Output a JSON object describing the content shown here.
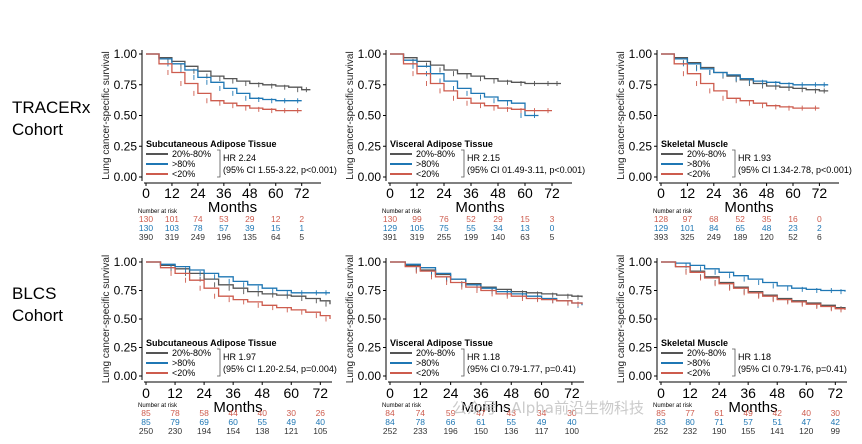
{
  "row_labels": [
    {
      "line1": "TRACERx",
      "line2": "Cohort"
    },
    {
      "line1": "BLCS",
      "line2": "Cohort"
    }
  ],
  "colors": {
    "mid": "#555555",
    "high": "#1f77b4",
    "low": "#cd5c4e"
  },
  "watermark": "公众号 · Alpha前沿生物科技",
  "chart_data": [
    {
      "type": "line",
      "panel": "tracerx-subcutaneous",
      "ylabel": "Lung cancer-specific survival",
      "xlabel": "Months",
      "xticks": [
        0,
        12,
        24,
        36,
        48,
        60,
        72
      ],
      "yticks": [
        "0.00",
        "0.25",
        "0.50",
        "0.75",
        "1.00"
      ],
      "xlim": [
        0,
        80
      ],
      "ylim": [
        0,
        1
      ],
      "legend_title": "Subcutaneous Adipose Tissue",
      "hr_line1": "HR 2.24",
      "hr_line2": "(95% CI 1.55-3.22, p<0.001)",
      "risk_header": "Number at risk",
      "series": [
        {
          "name": "20%-80%",
          "key": "mid",
          "x": [
            0,
            6,
            12,
            18,
            24,
            30,
            36,
            42,
            48,
            54,
            60,
            66,
            72,
            76
          ],
          "y": [
            1,
            0.97,
            0.94,
            0.9,
            0.86,
            0.82,
            0.8,
            0.78,
            0.76,
            0.75,
            0.74,
            0.73,
            0.71,
            0.71
          ],
          "risk": [
            "390",
            "319",
            "249",
            "196",
            "135",
            "64",
            "5"
          ]
        },
        {
          "name": ">80%",
          "key": "high",
          "x": [
            0,
            6,
            12,
            18,
            24,
            30,
            36,
            42,
            48,
            54,
            60,
            66,
            72
          ],
          "y": [
            1,
            0.96,
            0.92,
            0.87,
            0.81,
            0.77,
            0.72,
            0.68,
            0.64,
            0.63,
            0.62,
            0.62,
            0.62
          ],
          "risk": [
            "130",
            "103",
            "78",
            "57",
            "39",
            "15",
            "1"
          ]
        },
        {
          "name": "<20%",
          "key": "low",
          "x": [
            0,
            6,
            12,
            18,
            24,
            30,
            36,
            42,
            48,
            54,
            60,
            66,
            72
          ],
          "y": [
            1,
            0.92,
            0.85,
            0.76,
            0.68,
            0.62,
            0.6,
            0.58,
            0.56,
            0.55,
            0.54,
            0.54,
            0.54
          ],
          "risk": [
            "130",
            "101",
            "74",
            "53",
            "29",
            "12",
            "2"
          ]
        }
      ]
    },
    {
      "type": "line",
      "panel": "tracerx-visceral",
      "ylabel": "Lung cancer-specific survival",
      "xlabel": "Months",
      "xticks": [
        0,
        12,
        24,
        36,
        48,
        60,
        72
      ],
      "yticks": [
        "0.00",
        "0.25",
        "0.50",
        "0.75",
        "1.00"
      ],
      "xlim": [
        0,
        80
      ],
      "ylim": [
        0,
        1
      ],
      "legend_title": "Visceral Adipose Tissue",
      "hr_line1": "HR 2.15",
      "hr_line2": "(95% CI 01.49-3.11, p<0.001)",
      "risk_header": "Number at risk",
      "series": [
        {
          "name": "20%-80%",
          "key": "mid",
          "x": [
            0,
            6,
            12,
            18,
            24,
            30,
            36,
            42,
            48,
            54,
            60,
            66,
            72,
            76
          ],
          "y": [
            1,
            0.97,
            0.94,
            0.91,
            0.87,
            0.84,
            0.82,
            0.8,
            0.78,
            0.77,
            0.76,
            0.76,
            0.76,
            0.76
          ],
          "risk": [
            "391",
            "319",
            "255",
            "199",
            "140",
            "63",
            "5"
          ]
        },
        {
          "name": ">80%",
          "key": "high",
          "x": [
            0,
            6,
            12,
            18,
            24,
            30,
            36,
            42,
            48,
            54,
            60,
            66
          ],
          "y": [
            1,
            0.95,
            0.9,
            0.84,
            0.78,
            0.72,
            0.68,
            0.65,
            0.62,
            0.6,
            0.5,
            0.5
          ],
          "risk": [
            "129",
            "105",
            "75",
            "55",
            "34",
            "13",
            "0"
          ]
        },
        {
          "name": "<20%",
          "key": "low",
          "x": [
            0,
            6,
            12,
            18,
            24,
            30,
            36,
            42,
            48,
            54,
            60,
            66,
            72
          ],
          "y": [
            1,
            0.92,
            0.84,
            0.76,
            0.7,
            0.64,
            0.6,
            0.58,
            0.56,
            0.55,
            0.54,
            0.54,
            0.54
          ],
          "risk": [
            "130",
            "99",
            "76",
            "52",
            "29",
            "15",
            "3"
          ]
        }
      ]
    },
    {
      "type": "line",
      "panel": "tracerx-skeletal",
      "ylabel": "Lung cancer-specific survival",
      "xlabel": "Months",
      "xticks": [
        0,
        12,
        24,
        36,
        48,
        60,
        72
      ],
      "yticks": [
        "0.00",
        "0.25",
        "0.50",
        "0.75",
        "1.00"
      ],
      "xlim": [
        0,
        80
      ],
      "ylim": [
        0,
        1
      ],
      "legend_title": "Skeletal Muscle",
      "hr_line1": "HR 1.93",
      "hr_line2": "(95% CI 1.34-2.78, p<0.001)",
      "risk_header": "Number at risk",
      "series": [
        {
          "name": "20%-80%",
          "key": "mid",
          "x": [
            0,
            6,
            12,
            18,
            24,
            30,
            36,
            42,
            48,
            54,
            60,
            66,
            72,
            76
          ],
          "y": [
            1,
            0.97,
            0.93,
            0.89,
            0.85,
            0.82,
            0.79,
            0.76,
            0.74,
            0.73,
            0.72,
            0.71,
            0.7,
            0.7
          ],
          "risk": [
            "393",
            "325",
            "249",
            "189",
            "120",
            "52",
            "6"
          ]
        },
        {
          "name": ">80%",
          "key": "high",
          "x": [
            0,
            6,
            12,
            18,
            24,
            30,
            36,
            42,
            48,
            54,
            60,
            66,
            72,
            76
          ],
          "y": [
            1,
            0.96,
            0.92,
            0.88,
            0.85,
            0.83,
            0.8,
            0.78,
            0.77,
            0.76,
            0.75,
            0.75,
            0.75,
            0.75
          ],
          "risk": [
            "129",
            "101",
            "84",
            "65",
            "48",
            "23",
            "2"
          ]
        },
        {
          "name": "<20%",
          "key": "low",
          "x": [
            0,
            6,
            12,
            18,
            24,
            30,
            36,
            42,
            48,
            54,
            60,
            66,
            72
          ],
          "y": [
            1,
            0.92,
            0.84,
            0.76,
            0.7,
            0.64,
            0.62,
            0.6,
            0.58,
            0.57,
            0.56,
            0.56,
            0.56
          ],
          "risk": [
            "128",
            "97",
            "68",
            "52",
            "35",
            "16",
            "0"
          ]
        }
      ]
    },
    {
      "type": "line",
      "panel": "blcs-subcutaneous",
      "ylabel": "Lung cancer-specific survival",
      "xlabel": "Months",
      "xticks": [
        0,
        12,
        24,
        36,
        48,
        60,
        72
      ],
      "yticks": [
        "0.00",
        "0.25",
        "0.50",
        "0.75",
        "1.00"
      ],
      "xlim": [
        0,
        76
      ],
      "ylim": [
        0,
        1
      ],
      "legend_title": "Subcutaneous Adipose Tissue",
      "hr_line1": "HR 1.97",
      "hr_line2": "(95% CI 1.20-2.54, p=0.004)",
      "risk_header": "Number at risk",
      "series": [
        {
          "name": "20%-80%",
          "key": "mid",
          "x": [
            0,
            6,
            12,
            18,
            24,
            30,
            36,
            42,
            48,
            54,
            60,
            66,
            72,
            76
          ],
          "y": [
            1,
            0.97,
            0.94,
            0.9,
            0.85,
            0.8,
            0.77,
            0.74,
            0.72,
            0.71,
            0.7,
            0.68,
            0.66,
            0.63
          ],
          "risk": [
            "250",
            "230",
            "194",
            "154",
            "138",
            "121",
            "105"
          ]
        },
        {
          "name": ">80%",
          "key": "high",
          "x": [
            0,
            6,
            12,
            18,
            24,
            30,
            36,
            42,
            48,
            54,
            60,
            66,
            72,
            76
          ],
          "y": [
            1,
            0.98,
            0.96,
            0.93,
            0.9,
            0.87,
            0.83,
            0.8,
            0.77,
            0.75,
            0.73,
            0.73,
            0.73,
            0.73
          ],
          "risk": [
            "85",
            "79",
            "69",
            "60",
            "55",
            "49",
            "40"
          ]
        },
        {
          "name": "<20%",
          "key": "low",
          "x": [
            0,
            6,
            12,
            18,
            24,
            30,
            36,
            42,
            48,
            54,
            60,
            66,
            72,
            76
          ],
          "y": [
            1,
            0.95,
            0.9,
            0.84,
            0.77,
            0.7,
            0.67,
            0.65,
            0.62,
            0.6,
            0.58,
            0.56,
            0.53,
            0.5
          ],
          "risk": [
            "85",
            "78",
            "58",
            "44",
            "40",
            "30",
            "26"
          ]
        }
      ]
    },
    {
      "type": "line",
      "panel": "blcs-visceral",
      "ylabel": "Lung cancer-specific survival",
      "xlabel": "Months",
      "xticks": [
        0,
        12,
        24,
        36,
        48,
        60,
        72
      ],
      "yticks": [
        "0.00",
        "0.25",
        "0.50",
        "0.75",
        "1.00"
      ],
      "xlim": [
        0,
        76
      ],
      "ylim": [
        0,
        1
      ],
      "legend_title": "Visceral Adipose Tissue",
      "hr_line1": "HR 1.18",
      "hr_line2": "(95% CI 0.79-1.77, p=0.41)",
      "risk_header": "Number at risk",
      "series": [
        {
          "name": "20%-80%",
          "key": "mid",
          "x": [
            0,
            6,
            12,
            18,
            24,
            30,
            36,
            42,
            48,
            54,
            60,
            66,
            72,
            76
          ],
          "y": [
            1,
            0.97,
            0.93,
            0.89,
            0.85,
            0.81,
            0.78,
            0.76,
            0.74,
            0.73,
            0.72,
            0.71,
            0.7,
            0.69
          ],
          "risk": [
            "252",
            "233",
            "196",
            "150",
            "136",
            "117",
            "100"
          ]
        },
        {
          "name": ">80%",
          "key": "high",
          "x": [
            0,
            6,
            12,
            18,
            24,
            30,
            36,
            42,
            48,
            54,
            60,
            66,
            72,
            76
          ],
          "y": [
            1,
            0.98,
            0.95,
            0.9,
            0.85,
            0.8,
            0.77,
            0.74,
            0.72,
            0.7,
            0.68,
            0.66,
            0.64,
            0.62
          ],
          "risk": [
            "84",
            "78",
            "66",
            "61",
            "55",
            "49",
            "40"
          ]
        },
        {
          "name": "<20%",
          "key": "low",
          "x": [
            0,
            6,
            12,
            18,
            24,
            30,
            36,
            42,
            48,
            54,
            60,
            66,
            72,
            76
          ],
          "y": [
            1,
            0.96,
            0.92,
            0.87,
            0.82,
            0.78,
            0.75,
            0.72,
            0.7,
            0.68,
            0.67,
            0.66,
            0.64,
            0.63
          ],
          "risk": [
            "84",
            "74",
            "59",
            "47",
            "43",
            "34",
            "30"
          ]
        }
      ]
    },
    {
      "type": "line",
      "panel": "blcs-skeletal",
      "ylabel": "Lung cancer-specific survival",
      "xlabel": "Months",
      "xticks": [
        0,
        12,
        24,
        36,
        48,
        60,
        72
      ],
      "yticks": [
        "0.00",
        "0.25",
        "0.50",
        "0.75",
        "1.00"
      ],
      "xlim": [
        0,
        76
      ],
      "ylim": [
        0,
        1
      ],
      "legend_title": "Skeletal Muscle",
      "hr_line1": "HR 1.18",
      "hr_line2": "(95% CI 0.79-1.76, p=0.41)",
      "risk_header": "Number at risk",
      "series": [
        {
          "name": "20%-80%",
          "key": "mid",
          "x": [
            0,
            6,
            12,
            18,
            24,
            30,
            36,
            42,
            48,
            54,
            60,
            66,
            72,
            76
          ],
          "y": [
            1,
            0.96,
            0.92,
            0.87,
            0.82,
            0.78,
            0.74,
            0.71,
            0.68,
            0.66,
            0.64,
            0.62,
            0.6,
            0.59
          ],
          "risk": [
            "252",
            "232",
            "190",
            "155",
            "141",
            "120",
            "99"
          ]
        },
        {
          "name": ">80%",
          "key": "high",
          "x": [
            0,
            6,
            12,
            18,
            24,
            30,
            36,
            42,
            48,
            54,
            60,
            66,
            72,
            76
          ],
          "y": [
            1,
            0.99,
            0.97,
            0.94,
            0.91,
            0.88,
            0.85,
            0.82,
            0.79,
            0.77,
            0.76,
            0.75,
            0.75,
            0.74
          ],
          "risk": [
            "83",
            "80",
            "71",
            "57",
            "51",
            "47",
            "42"
          ]
        },
        {
          "name": "<20%",
          "key": "low",
          "x": [
            0,
            6,
            12,
            18,
            24,
            30,
            36,
            42,
            48,
            54,
            60,
            66,
            72,
            76
          ],
          "y": [
            1,
            0.96,
            0.91,
            0.86,
            0.81,
            0.77,
            0.73,
            0.7,
            0.67,
            0.65,
            0.63,
            0.61,
            0.59,
            0.58
          ],
          "risk": [
            "85",
            "77",
            "61",
            "49",
            "42",
            "40",
            "30"
          ]
        }
      ]
    }
  ]
}
